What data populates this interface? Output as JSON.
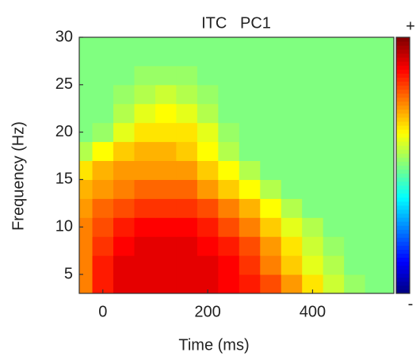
{
  "chart_data": {
    "type": "heatmap",
    "title": "ITC   PC1",
    "xlabel": "Time (ms)",
    "ylabel": "Frequency (Hz)",
    "x": [
      -40,
      0,
      40,
      80,
      120,
      160,
      200,
      240,
      280,
      320,
      360,
      400,
      440,
      480,
      520,
      560
    ],
    "y": [
      4,
      6,
      8,
      10,
      12,
      14,
      16,
      18,
      20,
      22,
      24,
      26,
      28,
      30
    ],
    "z": [
      [
        0.5,
        0.7,
        0.8,
        0.8,
        0.8,
        0.8,
        0.8,
        0.75,
        0.7,
        0.6,
        0.45,
        0.3,
        0.15,
        0.05,
        0,
        0
      ],
      [
        0.5,
        0.7,
        0.8,
        0.8,
        0.8,
        0.8,
        0.8,
        0.75,
        0.65,
        0.5,
        0.35,
        0.2,
        0.1,
        0,
        0,
        0
      ],
      [
        0.5,
        0.65,
        0.75,
        0.8,
        0.8,
        0.8,
        0.75,
        0.7,
        0.6,
        0.45,
        0.3,
        0.15,
        0.05,
        0,
        0,
        0
      ],
      [
        0.5,
        0.6,
        0.7,
        0.75,
        0.75,
        0.75,
        0.7,
        0.6,
        0.5,
        0.35,
        0.2,
        0.1,
        0,
        0,
        0,
        0
      ],
      [
        0.45,
        0.55,
        0.6,
        0.65,
        0.65,
        0.65,
        0.6,
        0.5,
        0.4,
        0.25,
        0.1,
        0,
        0,
        0,
        0,
        0
      ],
      [
        0.4,
        0.45,
        0.5,
        0.55,
        0.55,
        0.55,
        0.45,
        0.35,
        0.25,
        0.1,
        0,
        0,
        0,
        0,
        0,
        0
      ],
      [
        0.3,
        0.4,
        0.45,
        0.45,
        0.45,
        0.45,
        0.35,
        0.25,
        0.1,
        0,
        0,
        0,
        0,
        0,
        0,
        0
      ],
      [
        0.1,
        0.25,
        0.35,
        0.4,
        0.4,
        0.35,
        0.25,
        0.1,
        0,
        0,
        0,
        0,
        0,
        0,
        0,
        0
      ],
      [
        0,
        0.05,
        0.2,
        0.3,
        0.3,
        0.3,
        0.2,
        0.05,
        0,
        0,
        0,
        0,
        0,
        0,
        0,
        0
      ],
      [
        0,
        0,
        0.1,
        0.2,
        0.25,
        0.2,
        0.1,
        0,
        0,
        0,
        0,
        0,
        0,
        0,
        0,
        0
      ],
      [
        0,
        0,
        0.05,
        0.1,
        0.15,
        0.1,
        0.05,
        0,
        0,
        0,
        0,
        0,
        0,
        0,
        0,
        0
      ],
      [
        0,
        0,
        0,
        0.05,
        0.05,
        0.05,
        0,
        0,
        0,
        0,
        0,
        0,
        0,
        0,
        0,
        0
      ],
      [
        0,
        0,
        0,
        0,
        0,
        0,
        0,
        0,
        0,
        0,
        0,
        0,
        0,
        0,
        0,
        0
      ],
      [
        0,
        0,
        0,
        0,
        0,
        0,
        0,
        0,
        0,
        0,
        0,
        0,
        0,
        0,
        0,
        0
      ]
    ],
    "zlim": [
      -1,
      1
    ],
    "colormap": "jet",
    "colorbar_labels": [
      "+",
      "-"
    ],
    "xlim": [
      -45,
      555
    ],
    "ylim": [
      3,
      30
    ],
    "xticks": [
      0,
      200,
      400
    ],
    "yticks": [
      5,
      10,
      15,
      20,
      25,
      30
    ]
  }
}
